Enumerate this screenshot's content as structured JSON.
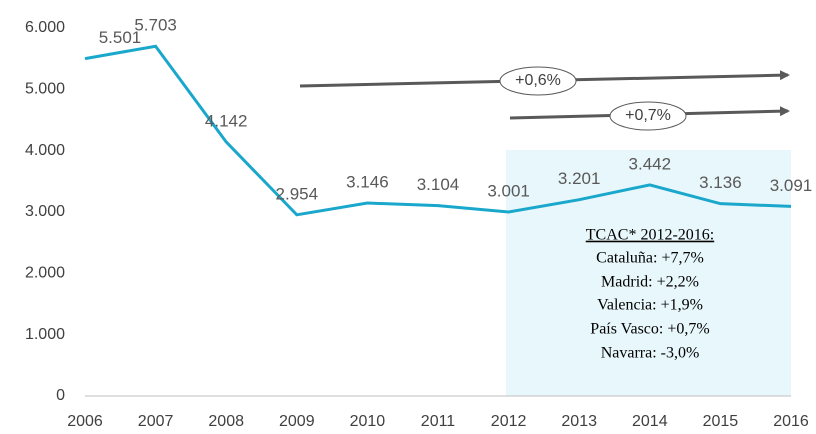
{
  "chart_data": {
    "type": "line",
    "categories": [
      "2006",
      "2007",
      "2008",
      "2009",
      "2010",
      "2011",
      "2012",
      "2013",
      "2014",
      "2015",
      "2016"
    ],
    "series": [
      {
        "color": "#1aa7cc",
        "values": [
          5501,
          5703,
          4142,
          2954,
          3146,
          3104,
          3001,
          3201,
          3442,
          3136,
          3091
        ],
        "value_labels": [
          "5.501",
          "5.703",
          "4.142",
          "2.954",
          "3.146",
          "3.104",
          "3.001",
          "3.201",
          "3.442",
          "3.136",
          "3.091"
        ]
      }
    ],
    "ylim": [
      0,
      6000
    ],
    "yticks": [
      0,
      {
        "value": 1000,
        "label": "1.000"
      },
      {
        "value": 2000,
        "label": "2.000"
      },
      {
        "value": 3000,
        "label": "3.000"
      },
      {
        "value": 4000,
        "label": "4.000"
      },
      {
        "value": 5000,
        "label": "5.000"
      },
      {
        "value": 6000,
        "label": "6.000"
      }
    ],
    "annotations": [
      "+0,6%",
      "+0,7%"
    ],
    "box_lines": [
      "TCAC* 2012-2016:",
      "Cataluña:  +7,7%",
      "Madrid:  +2,2%",
      "Valencia: +1,9%",
      "País Vasco: +0,7%",
      "Navarra: -3,0%"
    ]
  }
}
